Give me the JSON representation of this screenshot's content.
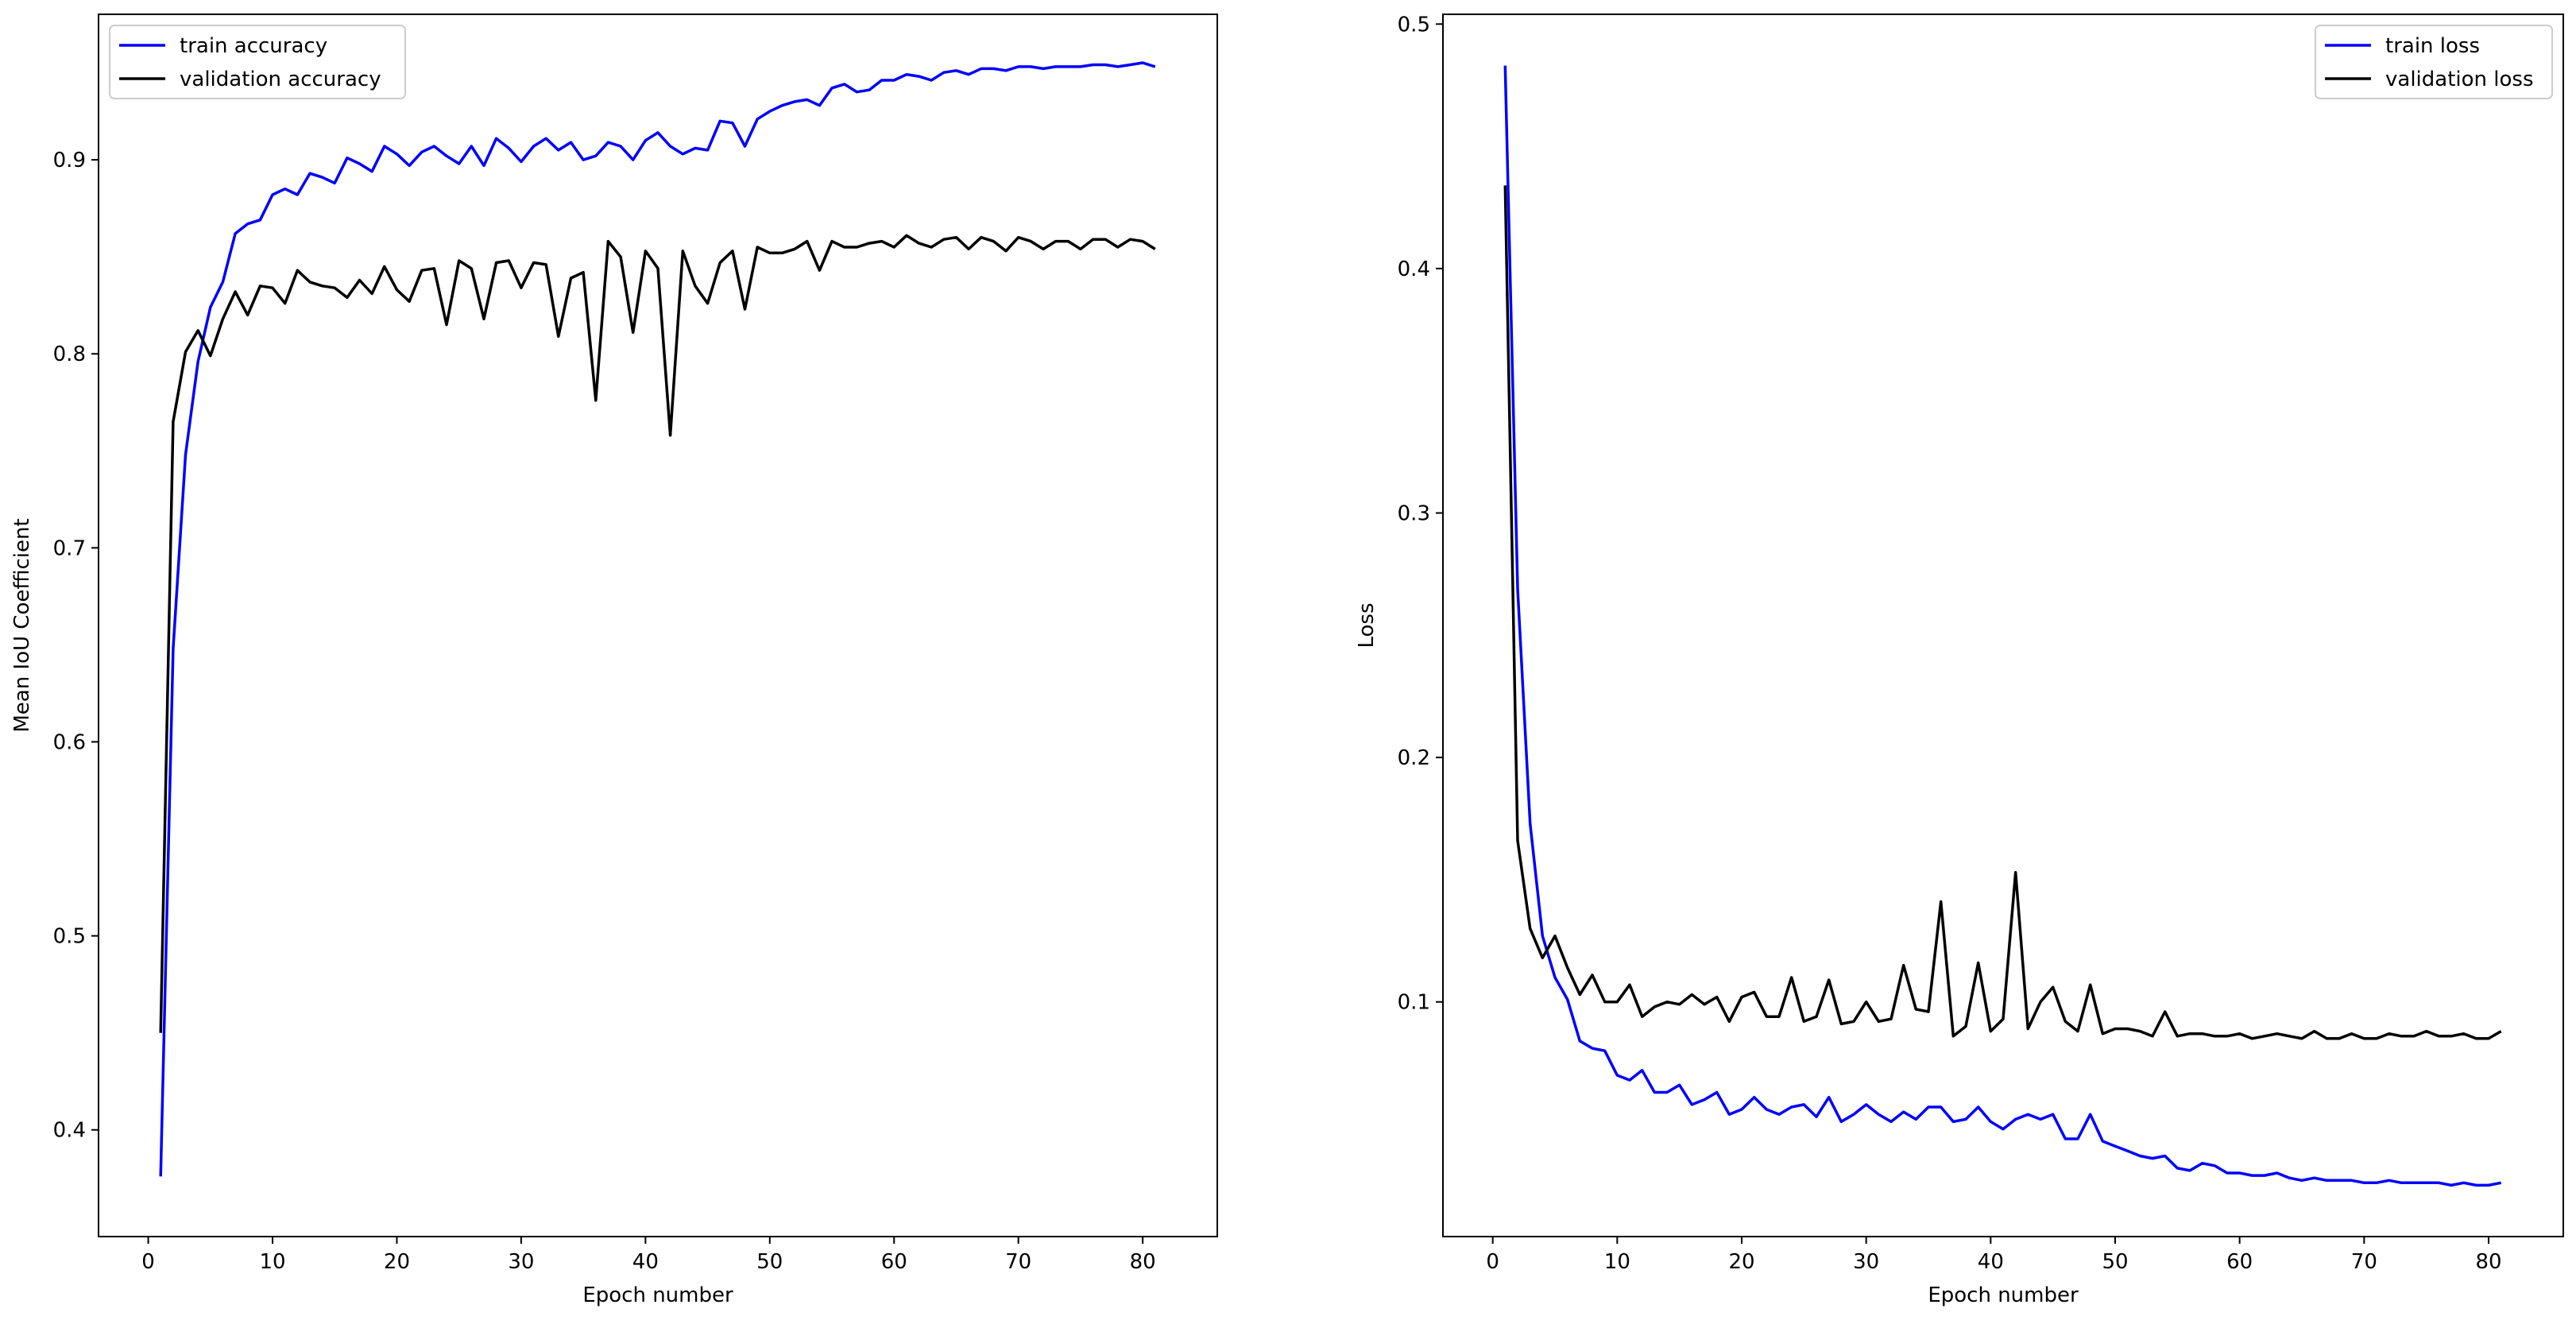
{
  "chart_data": [
    {
      "type": "line",
      "title": "",
      "xlabel": "Epoch number",
      "ylabel": "Mean IoU Coefficient",
      "xlim": [
        -4.0,
        86.0
      ],
      "ylim": [
        0.345,
        0.975
      ],
      "xticks": [
        0,
        10,
        20,
        30,
        40,
        50,
        60,
        70,
        80
      ],
      "yticks": [
        0.4,
        0.5,
        0.6,
        0.7,
        0.8,
        0.9
      ],
      "ytick_labels": [
        "0.4",
        "0.5",
        "0.6",
        "0.7",
        "0.8",
        "0.9"
      ],
      "grid": false,
      "legend_position": "top-left",
      "x": [
        1,
        2,
        3,
        4,
        5,
        6,
        7,
        8,
        9,
        10,
        11,
        12,
        13,
        14,
        15,
        16,
        17,
        18,
        19,
        20,
        21,
        22,
        23,
        24,
        25,
        26,
        27,
        28,
        29,
        30,
        31,
        32,
        33,
        34,
        35,
        36,
        37,
        38,
        39,
        40,
        41,
        42,
        43,
        44,
        45,
        46,
        47,
        48,
        49,
        50,
        51,
        52,
        53,
        54,
        55,
        56,
        57,
        58,
        59,
        60,
        61,
        62,
        63,
        64,
        65,
        66,
        67,
        68,
        69,
        70,
        71,
        72,
        73,
        74,
        75,
        76,
        77,
        78,
        79,
        80,
        81
      ],
      "series": [
        {
          "name": "train accuracy",
          "color": "#0000ff",
          "values": [
            0.376,
            0.648,
            0.748,
            0.796,
            0.824,
            0.837,
            0.862,
            0.867,
            0.869,
            0.882,
            0.885,
            0.882,
            0.893,
            0.891,
            0.888,
            0.901,
            0.898,
            0.894,
            0.907,
            0.903,
            0.897,
            0.904,
            0.907,
            0.902,
            0.898,
            0.907,
            0.897,
            0.911,
            0.906,
            0.899,
            0.907,
            0.911,
            0.905,
            0.909,
            0.9,
            0.902,
            0.909,
            0.907,
            0.9,
            0.91,
            0.914,
            0.907,
            0.903,
            0.906,
            0.905,
            0.92,
            0.919,
            0.907,
            0.921,
            0.925,
            0.928,
            0.93,
            0.931,
            0.928,
            0.937,
            0.939,
            0.935,
            0.936,
            0.941,
            0.941,
            0.944,
            0.943,
            0.941,
            0.945,
            0.946,
            0.944,
            0.947,
            0.947,
            0.946,
            0.948,
            0.948,
            0.947,
            0.948,
            0.948,
            0.948,
            0.949,
            0.949,
            0.948,
            0.949,
            0.95,
            0.948
          ]
        },
        {
          "name": "validation accuracy",
          "color": "#000000",
          "values": [
            0.45,
            0.765,
            0.801,
            0.812,
            0.799,
            0.818,
            0.832,
            0.82,
            0.835,
            0.834,
            0.826,
            0.843,
            0.837,
            0.835,
            0.834,
            0.829,
            0.838,
            0.831,
            0.845,
            0.833,
            0.827,
            0.843,
            0.844,
            0.815,
            0.848,
            0.844,
            0.818,
            0.847,
            0.848,
            0.834,
            0.847,
            0.846,
            0.809,
            0.839,
            0.842,
            0.776,
            0.858,
            0.85,
            0.811,
            0.853,
            0.844,
            0.758,
            0.853,
            0.835,
            0.826,
            0.847,
            0.853,
            0.823,
            0.855,
            0.852,
            0.852,
            0.854,
            0.858,
            0.843,
            0.858,
            0.855,
            0.855,
            0.857,
            0.858,
            0.855,
            0.861,
            0.857,
            0.855,
            0.859,
            0.86,
            0.854,
            0.86,
            0.858,
            0.853,
            0.86,
            0.858,
            0.854,
            0.858,
            0.858,
            0.854,
            0.859,
            0.859,
            0.855,
            0.859,
            0.858,
            0.854
          ]
        }
      ]
    },
    {
      "type": "line",
      "title": "",
      "xlabel": "Epoch number",
      "ylabel": "Loss",
      "xlim": [
        -4.0,
        86.0
      ],
      "ylim": [
        0.004,
        0.504
      ],
      "xticks": [
        0,
        10,
        20,
        30,
        40,
        50,
        60,
        70,
        80
      ],
      "yticks": [
        0.1,
        0.2,
        0.3,
        0.4,
        0.5
      ],
      "ytick_labels": [
        "0.1",
        "0.2",
        "0.3",
        "0.4",
        "0.5"
      ],
      "grid": false,
      "legend_position": "top-right",
      "x": [
        1,
        2,
        3,
        4,
        5,
        6,
        7,
        8,
        9,
        10,
        11,
        12,
        13,
        14,
        15,
        16,
        17,
        18,
        19,
        20,
        21,
        22,
        23,
        24,
        25,
        26,
        27,
        28,
        29,
        30,
        31,
        32,
        33,
        34,
        35,
        36,
        37,
        38,
        39,
        40,
        41,
        42,
        43,
        44,
        45,
        46,
        47,
        48,
        49,
        50,
        51,
        52,
        53,
        54,
        55,
        56,
        57,
        58,
        59,
        60,
        61,
        62,
        63,
        64,
        65,
        66,
        67,
        68,
        69,
        70,
        71,
        72,
        73,
        74,
        75,
        76,
        77,
        78,
        79,
        80,
        81
      ],
      "series": [
        {
          "name": "train loss",
          "color": "#0000ff",
          "values": [
            0.483,
            0.269,
            0.173,
            0.127,
            0.11,
            0.101,
            0.084,
            0.081,
            0.08,
            0.07,
            0.068,
            0.072,
            0.063,
            0.063,
            0.066,
            0.058,
            0.06,
            0.063,
            0.054,
            0.056,
            0.061,
            0.056,
            0.054,
            0.057,
            0.058,
            0.053,
            0.061,
            0.051,
            0.054,
            0.058,
            0.054,
            0.051,
            0.055,
            0.052,
            0.057,
            0.057,
            0.051,
            0.052,
            0.057,
            0.051,
            0.048,
            0.052,
            0.054,
            0.052,
            0.054,
            0.044,
            0.044,
            0.054,
            0.043,
            0.041,
            0.039,
            0.037,
            0.036,
            0.037,
            0.032,
            0.031,
            0.034,
            0.033,
            0.03,
            0.03,
            0.029,
            0.029,
            0.03,
            0.028,
            0.027,
            0.028,
            0.027,
            0.027,
            0.027,
            0.026,
            0.026,
            0.027,
            0.026,
            0.026,
            0.026,
            0.026,
            0.025,
            0.026,
            0.025,
            0.025,
            0.026
          ]
        },
        {
          "name": "validation loss",
          "color": "#000000",
          "values": [
            0.434,
            0.166,
            0.13,
            0.118,
            0.127,
            0.114,
            0.103,
            0.111,
            0.1,
            0.1,
            0.107,
            0.094,
            0.098,
            0.1,
            0.099,
            0.103,
            0.099,
            0.102,
            0.092,
            0.102,
            0.104,
            0.094,
            0.094,
            0.11,
            0.092,
            0.094,
            0.109,
            0.091,
            0.092,
            0.1,
            0.092,
            0.093,
            0.115,
            0.097,
            0.096,
            0.141,
            0.086,
            0.09,
            0.116,
            0.088,
            0.093,
            0.153,
            0.089,
            0.1,
            0.106,
            0.092,
            0.088,
            0.107,
            0.087,
            0.089,
            0.089,
            0.088,
            0.086,
            0.096,
            0.086,
            0.087,
            0.087,
            0.086,
            0.086,
            0.087,
            0.085,
            0.086,
            0.087,
            0.086,
            0.085,
            0.088,
            0.085,
            0.085,
            0.087,
            0.085,
            0.085,
            0.087,
            0.086,
            0.086,
            0.088,
            0.086,
            0.086,
            0.087,
            0.085,
            0.085,
            0.088
          ]
        }
      ]
    }
  ]
}
